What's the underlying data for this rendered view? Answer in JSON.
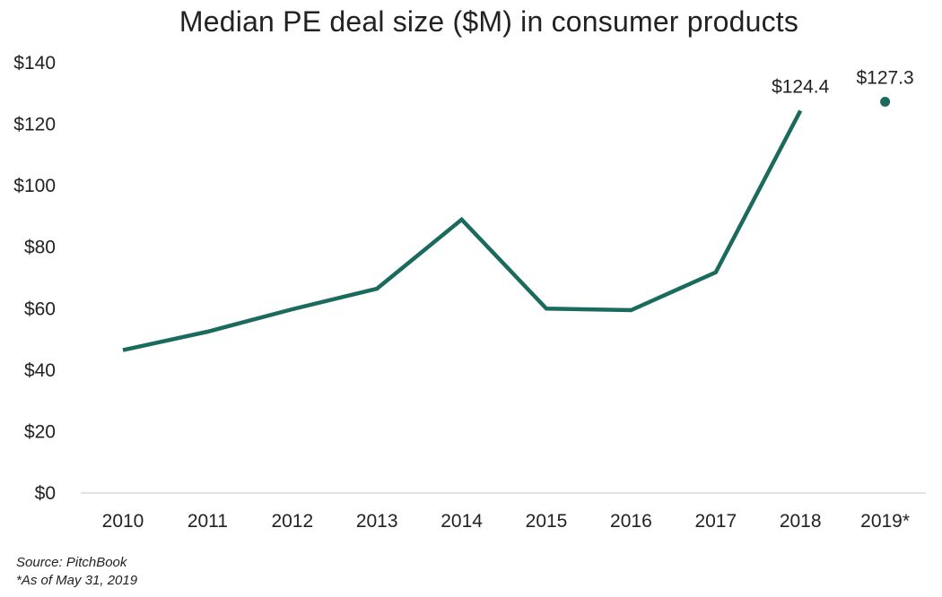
{
  "chart_data": {
    "type": "line",
    "title": "Median PE deal size ($M) in consumer products",
    "xlabel": "",
    "ylabel": "",
    "categories": [
      "2010",
      "2011",
      "2012",
      "2013",
      "2014",
      "2015",
      "2016",
      "2017",
      "2018",
      "2019*"
    ],
    "series": [
      {
        "values": [
          46.5,
          52.5,
          59.8,
          66.5,
          89.0,
          60.0,
          59.5,
          71.8,
          124.4,
          127.3
        ],
        "color": "#1a6b5e"
      }
    ],
    "line_categories_count": 9,
    "point_only_categories": [
      "2019*"
    ],
    "data_labels": [
      {
        "category": "2018",
        "text": "$124.4"
      },
      {
        "category": "2019*",
        "text": "$127.3"
      }
    ],
    "ylim": [
      0,
      140
    ],
    "yticks": [
      0,
      20,
      40,
      60,
      80,
      100,
      120,
      140
    ],
    "ytick_labels": [
      "$0",
      "$20",
      "$40",
      "$60",
      "$80",
      "$100",
      "$120",
      "$140"
    ],
    "grid": false,
    "legend": "none"
  },
  "footnotes": {
    "source": "Source: PitchBook",
    "as_of": "*As of May 31, 2019"
  },
  "colors": {
    "line": "#1a6b5e",
    "axis": "#d0d0d0",
    "text": "#222222"
  }
}
